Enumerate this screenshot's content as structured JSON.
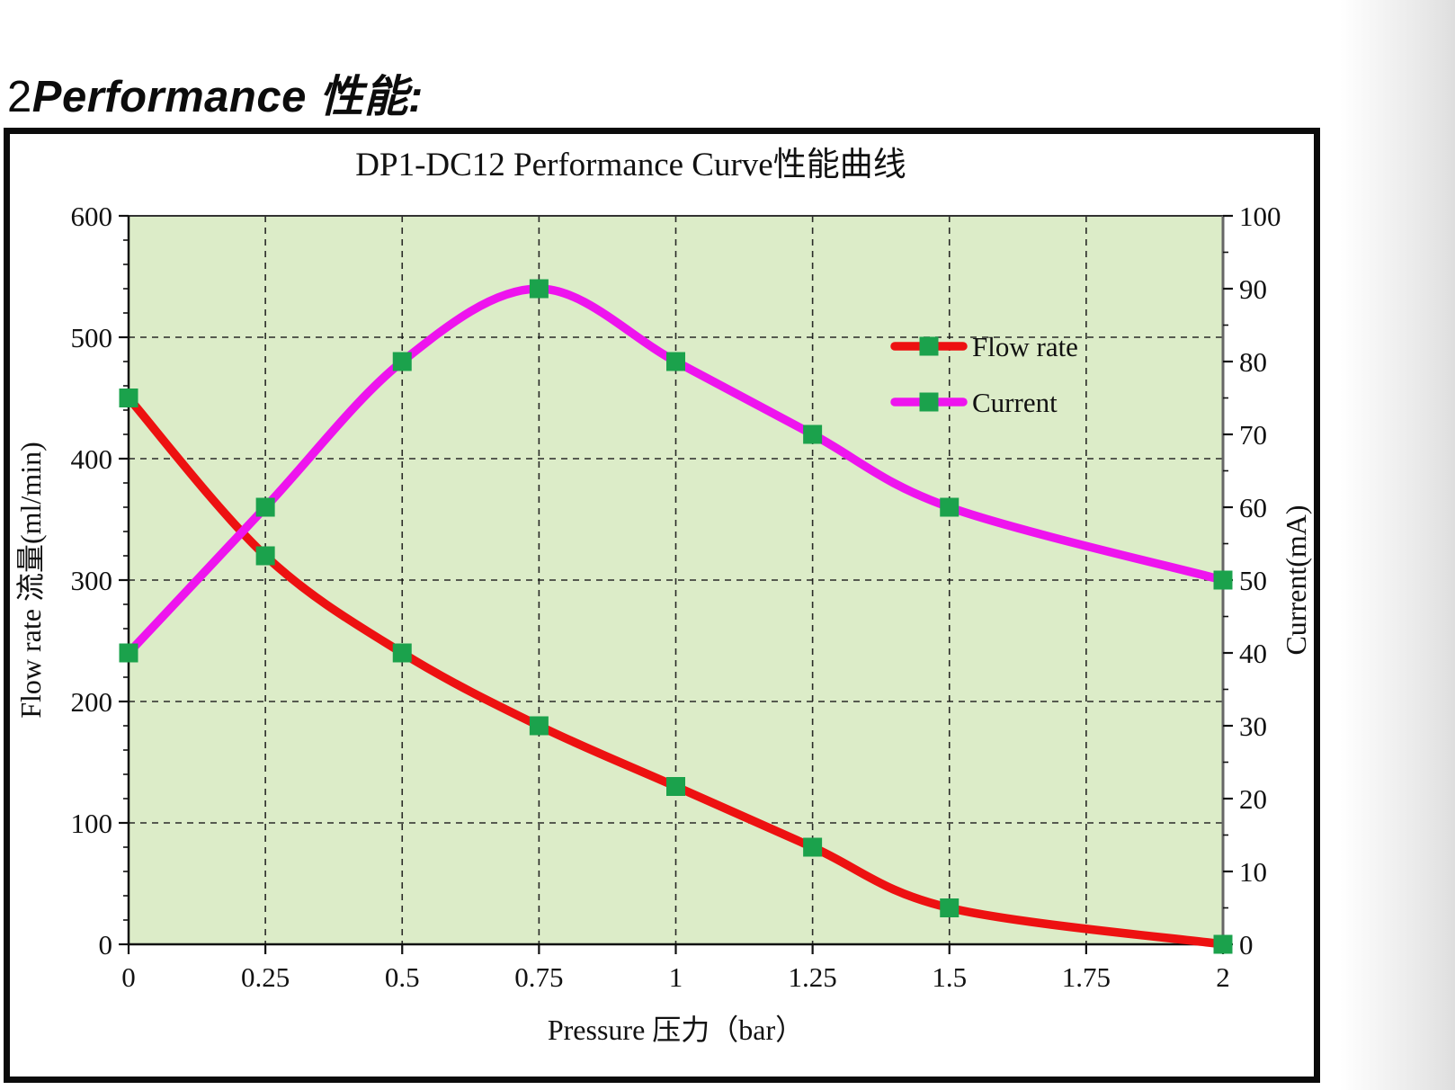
{
  "heading": {
    "prefix": "2",
    "word": "Performance",
    "suffix": " 性能:"
  },
  "chart_data": {
    "type": "line",
    "title": "DP1-DC12 Performance Curve性能曲线",
    "xlabel": "Pressure 压力（bar）",
    "x": [
      0,
      0.25,
      0.5,
      0.75,
      1,
      1.25,
      1.5,
      2
    ],
    "x_axis": {
      "lim": [
        0,
        2
      ],
      "ticks": [
        0,
        0.25,
        0.5,
        0.75,
        1,
        1.25,
        1.5,
        1.75,
        2
      ],
      "tick_labels": [
        "0",
        "0.25",
        "0.5",
        "0.75",
        "1",
        "1.25",
        "1.5",
        "1.75",
        "2"
      ]
    },
    "left_axis": {
      "label": "Flow rate 流量(ml/min)",
      "lim": [
        0,
        600
      ],
      "ticks": [
        0,
        100,
        200,
        300,
        400,
        500,
        600
      ],
      "tick_labels": [
        "0",
        "100",
        "200",
        "300",
        "400",
        "500",
        "600"
      ],
      "minor_step": 20
    },
    "right_axis": {
      "label": "Current(mA)",
      "lim": [
        0,
        100
      ],
      "ticks": [
        0,
        10,
        20,
        30,
        40,
        50,
        60,
        70,
        80,
        90,
        100
      ],
      "tick_labels": [
        "0",
        "10",
        "20",
        "30",
        "40",
        "50",
        "60",
        "70",
        "80",
        "90",
        "100"
      ],
      "minor_step": 5
    },
    "series": [
      {
        "name": "Flow rate",
        "axis": "left",
        "color": "#ed1111",
        "values": [
          450,
          320,
          240,
          180,
          130,
          80,
          30,
          0
        ]
      },
      {
        "name": "Current",
        "axis": "right",
        "color": "#ee14ee",
        "values": [
          40,
          60,
          80,
          90,
          80,
          70,
          60,
          50
        ]
      }
    ],
    "marker": {
      "shape": "square",
      "color": "#1ba24c",
      "size": 21
    },
    "plot_bg": "#dcecc8",
    "grid": "dashed",
    "legend_position": "inside-right-upper"
  }
}
